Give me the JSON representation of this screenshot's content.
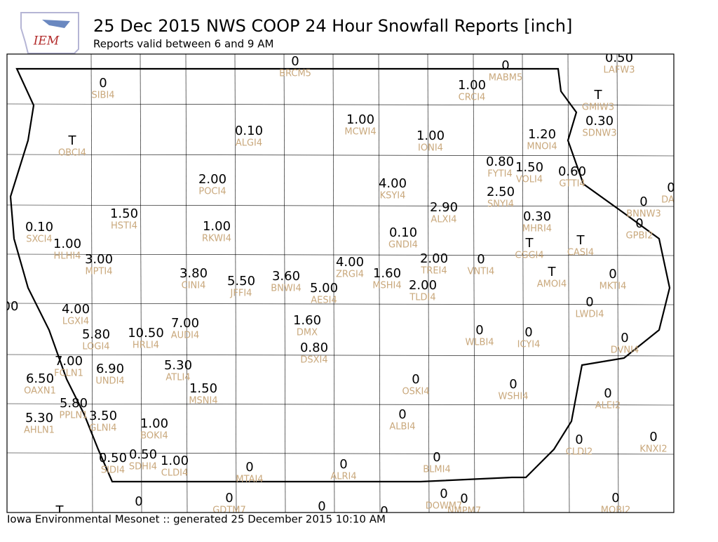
{
  "header": {
    "logo_text": "IEM",
    "title": "25 Dec 2015 NWS COOP 24 Hour Snowfall Reports [inch]",
    "subtitle": "Reports valid between 6 and 9 AM"
  },
  "footer": "Iowa Environmental Mesonet :: generated 25 December 2015 10:10 AM",
  "stations": [
    {
      "value": "0",
      "id": "BRCM5"
    },
    {
      "value": "0",
      "id": "MABM5"
    },
    {
      "value": "0.50",
      "id": "LAFW3"
    },
    {
      "value": "0",
      "id": "SIBI4"
    },
    {
      "value": "1.00",
      "id": "CRCI4"
    },
    {
      "value": "T",
      "id": "GMIW3"
    },
    {
      "value": "1.00",
      "id": "MCWI4"
    },
    {
      "value": "0.30",
      "id": "SDNW3"
    },
    {
      "value": "0.10",
      "id": "ALGI4"
    },
    {
      "value": "1.00",
      "id": "IONI4"
    },
    {
      "value": "1.20",
      "id": "MNOI4"
    },
    {
      "value": "T",
      "id": "OBCI4"
    },
    {
      "value": "0.80",
      "id": "FYTI4"
    },
    {
      "value": "1.50",
      "id": "VOLI4"
    },
    {
      "value": "0.60",
      "id": "GTTI4"
    },
    {
      "value": "2.00",
      "id": "POCI4"
    },
    {
      "value": "4.00",
      "id": "KSYI4"
    },
    {
      "value": "0",
      "id": "DAR"
    },
    {
      "value": "2.50",
      "id": "SNYI4"
    },
    {
      "value": "0",
      "id": "BNNW3"
    },
    {
      "value": "2.90",
      "id": "ALXI4"
    },
    {
      "value": "1.50",
      "id": "HSTI4"
    },
    {
      "value": "0.30",
      "id": "MHRI4"
    },
    {
      "value": "1.00",
      "id": "RKWI4"
    },
    {
      "value": "0",
      "id": "GPBI2"
    },
    {
      "value": "0.10",
      "id": "SXCI4"
    },
    {
      "value": "0.10",
      "id": "GNDI4"
    },
    {
      "value": "T",
      "id": "CASI4"
    },
    {
      "value": "T",
      "id": "CGGI4"
    },
    {
      "value": "1.00",
      "id": "HLHI4"
    },
    {
      "value": "2.00",
      "id": "TREI4"
    },
    {
      "value": "0",
      "id": "VNTI4"
    },
    {
      "value": "3.00",
      "id": "MPTI4"
    },
    {
      "value": "4.00",
      "id": "ZRGI4"
    },
    {
      "value": "T",
      "id": "AMOI4"
    },
    {
      "value": "0",
      "id": "MKTI4"
    },
    {
      "value": "3.80",
      "id": "CINI4"
    },
    {
      "value": "1.60",
      "id": "MSHI4"
    },
    {
      "value": "5.50",
      "id": "JFFI4"
    },
    {
      "value": "3.60",
      "id": "BNWI4"
    },
    {
      "value": "2.00",
      "id": "TLDI4"
    },
    {
      "value": "5.00",
      "id": "AESI4"
    },
    {
      "value": "0",
      "id": "LWDI4"
    },
    {
      "value": "00"
    },
    {
      "value": "4.00",
      "id": "LGXI4"
    },
    {
      "value": "1.60",
      "id": "DMX"
    },
    {
      "value": "0",
      "id": "WLBI4"
    },
    {
      "value": "0",
      "id": "ICYI4"
    },
    {
      "value": "5.80",
      "id": "LOGI4"
    },
    {
      "value": "10.50",
      "id": "HRLI4"
    },
    {
      "value": "7.00",
      "id": "AUDI4"
    },
    {
      "value": "0",
      "id": "DVNI4"
    },
    {
      "value": "0.80",
      "id": "DSXI4"
    },
    {
      "value": "7.00",
      "id": "FCLN1"
    },
    {
      "value": "6.90",
      "id": "UNDI4"
    },
    {
      "value": "5.30",
      "id": "ATLI4"
    },
    {
      "value": "6.50",
      "id": "OAXN1"
    },
    {
      "value": "0",
      "id": "OSKI4"
    },
    {
      "value": "0",
      "id": "WSHI4"
    },
    {
      "value": "1.50",
      "id": "MSNI4"
    },
    {
      "value": "0",
      "id": "ALEI2"
    },
    {
      "value": "5.80",
      "id": "PPLN1"
    },
    {
      "value": "3.50",
      "id": "GLNI4"
    },
    {
      "value": "0",
      "id": "ALBI4"
    },
    {
      "value": "5.30",
      "id": "AHLN1"
    },
    {
      "value": "1.00",
      "id": "BOKI4"
    },
    {
      "value": "0",
      "id": "KNXI2"
    },
    {
      "value": "0",
      "id": "CLDI2"
    },
    {
      "value": "0.50",
      "id": "SIDI4"
    },
    {
      "value": "0.50",
      "id": "SDHI4"
    },
    {
      "value": "1.00",
      "id": "CLDI4"
    },
    {
      "value": "0",
      "id": "BLMI4"
    },
    {
      "value": "0",
      "id": "ALRI4"
    },
    {
      "value": "0",
      "id": "MTAI4"
    },
    {
      "value": "0",
      "id": "DOWM7"
    },
    {
      "value": "0",
      "id": "NMPM7"
    },
    {
      "value": "0",
      "id": "MOBI2"
    },
    {
      "value": "0"
    },
    {
      "value": "T"
    },
    {
      "value": "0"
    },
    {
      "value": "0"
    },
    {
      "value": "0",
      "id": "GDTM7"
    }
  ]
}
